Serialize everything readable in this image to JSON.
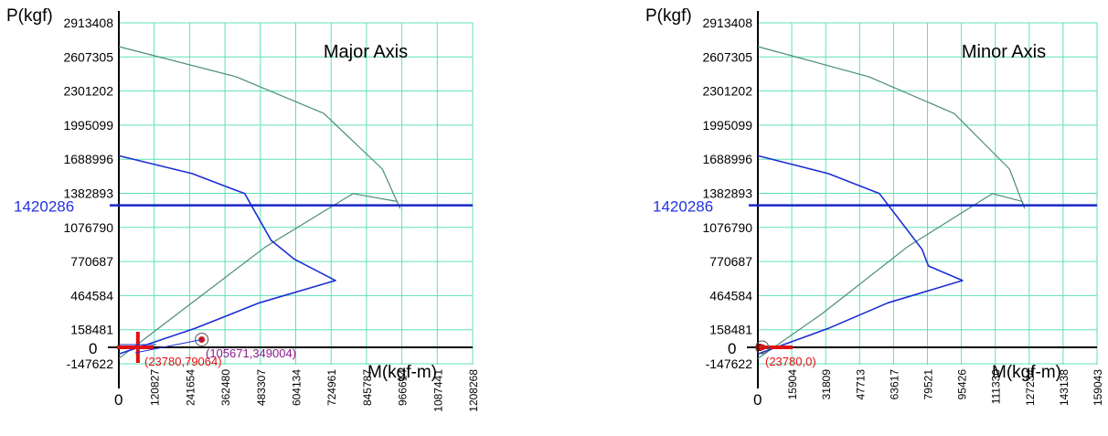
{
  "chart_data": [
    {
      "type": "line",
      "title": "Major Axis",
      "ylabel": "P(kgf)",
      "xlabel": "M(kgf-m)",
      "x_origin_label": "0",
      "y_origin_label": "0",
      "y_ticks": [
        {
          "value": -147622,
          "label": "-147622"
        },
        {
          "value": 158481,
          "label": "158481"
        },
        {
          "value": 464584,
          "label": "464584"
        },
        {
          "value": 770687,
          "label": "770687"
        },
        {
          "value": 1076790,
          "label": "1076790"
        },
        {
          "value": 1382893,
          "label": "1382893"
        },
        {
          "value": 1688996,
          "label": "1688996"
        },
        {
          "value": 1995099,
          "label": "1995099"
        },
        {
          "value": 2301202,
          "label": "2301202"
        },
        {
          "value": 2607305,
          "label": "2607305"
        },
        {
          "value": 2913408,
          "label": "2913408"
        }
      ],
      "x_ticks": [
        {
          "value": 120827,
          "label": "120827"
        },
        {
          "value": 241654,
          "label": "241654"
        },
        {
          "value": 362480,
          "label": "362480"
        },
        {
          "value": 483307,
          "label": "483307"
        },
        {
          "value": 604134,
          "label": "604134"
        },
        {
          "value": 724961,
          "label": "724961"
        },
        {
          "value": 845787,
          "label": "845787"
        },
        {
          "value": 966614,
          "label": "966614"
        },
        {
          "value": 1087441,
          "label": "1087441"
        },
        {
          "value": 1208268,
          "label": "1208268"
        }
      ],
      "xlim": [
        0,
        1208268
      ],
      "ylim": [
        -147622,
        2913408
      ],
      "grid": true,
      "hline": {
        "value": 1275000,
        "label": "1420286"
      },
      "series": [
        {
          "role": "nominal",
          "color": "#4a8c7c",
          "points": [
            [
              0,
              -100000
            ],
            [
              200000,
              300000
            ],
            [
              500000,
              900000
            ],
            [
              800000,
              1380000
            ],
            [
              950000,
              1310000
            ],
            [
              960000,
              1250000
            ],
            [
              900000,
              1600000
            ],
            [
              700000,
              2100000
            ],
            [
              400000,
              2430000
            ],
            [
              0,
              2700000
            ]
          ]
        },
        {
          "role": "design",
          "color": "#1a2fd4",
          "points": [
            [
              0,
              -60000
            ],
            [
              260000,
              170000
            ],
            [
              480000,
              400000
            ],
            [
              740000,
              600000
            ],
            [
              600000,
              790000
            ],
            [
              520000,
              960000
            ],
            [
              430000,
              1380000
            ],
            [
              250000,
              1560000
            ],
            [
              0,
              1720000
            ]
          ]
        }
      ],
      "markers": [
        {
          "type": "load-cross",
          "color": "#e01010",
          "x": 65000,
          "y": 0,
          "label": "(23780,79064)"
        },
        {
          "type": "target-circle",
          "color": "#cc1a1a",
          "x": 283000,
          "y": 70000,
          "label": "(105671,349004)"
        }
      ]
    },
    {
      "type": "line",
      "title": "Minor Axis",
      "ylabel": "P(kgf)",
      "xlabel": "M(kgf-m)",
      "x_origin_label": "0",
      "y_origin_label": "0",
      "y_ticks": [
        {
          "value": -147622,
          "label": "-147622"
        },
        {
          "value": 158481,
          "label": "158481"
        },
        {
          "value": 464584,
          "label": "464584"
        },
        {
          "value": 770687,
          "label": "770687"
        },
        {
          "value": 1076790,
          "label": "1076790"
        },
        {
          "value": 1382893,
          "label": "1382893"
        },
        {
          "value": 1688996,
          "label": "1688996"
        },
        {
          "value": 1995099,
          "label": "1995099"
        },
        {
          "value": 2301202,
          "label": "2301202"
        },
        {
          "value": 2607305,
          "label": "2607305"
        },
        {
          "value": 2913408,
          "label": "2913408"
        }
      ],
      "x_ticks": [
        {
          "value": 15904,
          "label": "15904"
        },
        {
          "value": 31809,
          "label": "31809"
        },
        {
          "value": 47713,
          "label": "47713"
        },
        {
          "value": 63617,
          "label": "63617"
        },
        {
          "value": 79521,
          "label": "79521"
        },
        {
          "value": 95426,
          "label": "95426"
        },
        {
          "value": 111330,
          "label": "111330"
        },
        {
          "value": 127234,
          "label": "127234"
        },
        {
          "value": 143138,
          "label": "143138"
        },
        {
          "value": 159043,
          "label": "159043"
        }
      ],
      "xlim": [
        0,
        159043
      ],
      "ylim": [
        -147622,
        2913408
      ],
      "grid": true,
      "hline": {
        "value": 1275000,
        "label": "1420286"
      },
      "series": [
        {
          "role": "nominal",
          "color": "#4a8c7c",
          "points": [
            [
              0,
              -100000
            ],
            [
              30000,
              300000
            ],
            [
              70000,
              900000
            ],
            [
              110000,
              1380000
            ],
            [
              124000,
              1310000
            ],
            [
              125000,
              1250000
            ],
            [
              118000,
              1600000
            ],
            [
              92000,
              2100000
            ],
            [
              52000,
              2430000
            ],
            [
              0,
              2700000
            ]
          ]
        },
        {
          "role": "design",
          "color": "#1a2fd4",
          "points": [
            [
              0,
              -60000
            ],
            [
              33000,
              170000
            ],
            [
              61000,
              400000
            ],
            [
              96000,
              600000
            ],
            [
              80000,
              730000
            ],
            [
              77000,
              880000
            ],
            [
              57000,
              1380000
            ],
            [
              33000,
              1560000
            ],
            [
              0,
              1720000
            ]
          ]
        }
      ],
      "markers": [
        {
          "type": "load-cross",
          "color": "#e01010",
          "x": 2000,
          "y": 0,
          "label": ""
        },
        {
          "type": "target-circle",
          "color": "#cc1a1a",
          "x": 2000,
          "y": 0,
          "label": "(23780,0)"
        }
      ]
    }
  ]
}
